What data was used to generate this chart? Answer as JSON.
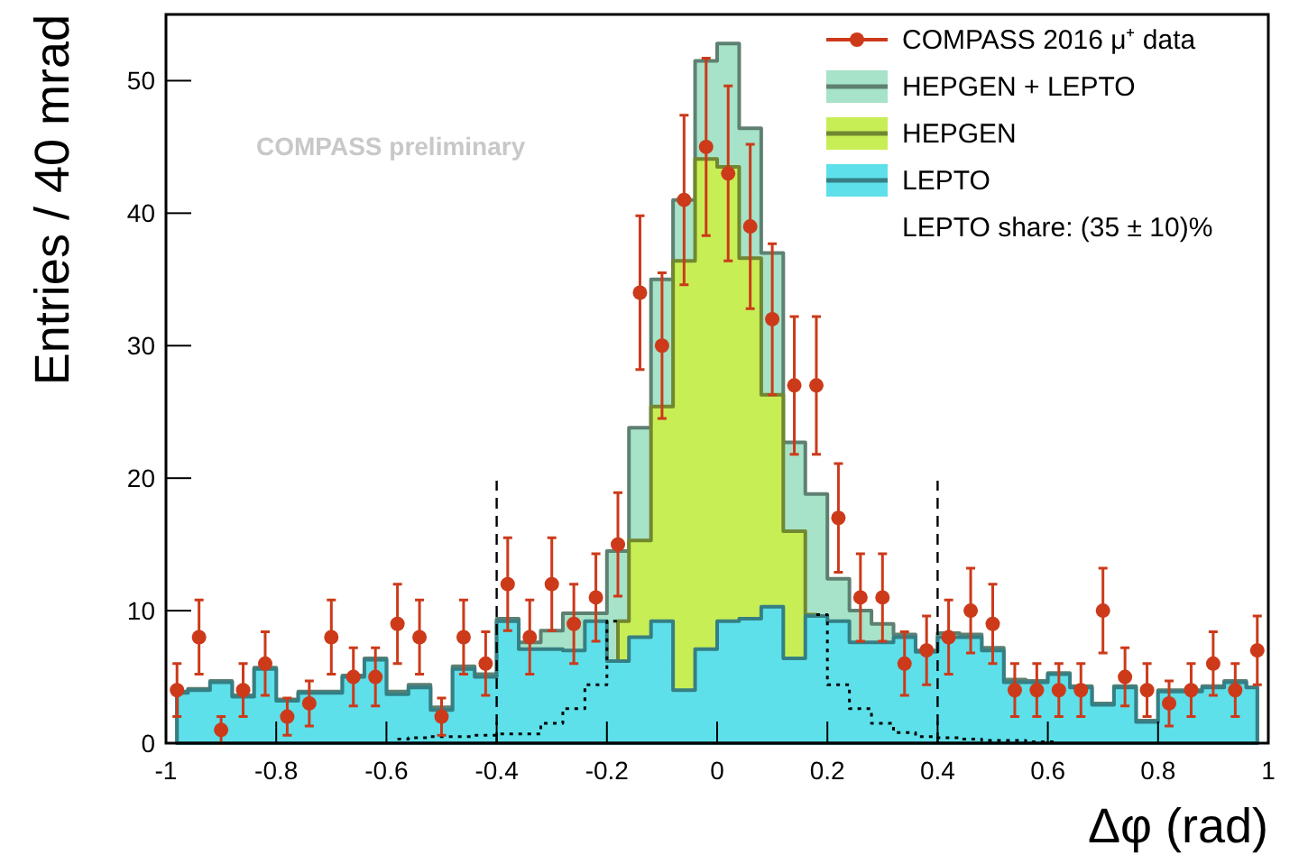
{
  "chart_data": {
    "type": "area",
    "xlabel": "Δφ (rad)",
    "ylabel": "Entries / 40 mrad",
    "legend": "top right",
    "grid": false,
    "xlim": [
      -1,
      1
    ],
    "xticks": [
      -1,
      -0.8,
      -0.6,
      -0.4,
      -0.2,
      0,
      0.2,
      0.4,
      0.6,
      0.8,
      1
    ],
    "ylim": [
      0,
      55
    ],
    "yticks": [
      0,
      10,
      20,
      30,
      40,
      50
    ],
    "x": [
      -0.98,
      -0.94,
      -0.9,
      -0.86,
      -0.82,
      -0.78,
      -0.74,
      -0.7,
      -0.66,
      -0.62,
      -0.58,
      -0.54,
      -0.5,
      -0.46,
      -0.42,
      -0.38,
      -0.34,
      -0.3,
      -0.26,
      -0.22,
      -0.18,
      -0.14,
      -0.1,
      -0.06,
      -0.02,
      0.02,
      0.06,
      0.1,
      0.14,
      0.18,
      0.22,
      0.26,
      0.3,
      0.34,
      0.38,
      0.42,
      0.46,
      0.5,
      0.54,
      0.58,
      0.62,
      0.66,
      0.7,
      0.74,
      0.78,
      0.82,
      0.86,
      0.9,
      0.94,
      0.98
    ],
    "series": [
      {
        "name": "COMPASS 2016 μ⁺ data",
        "type": "scatter",
        "marker": "circle",
        "color": "#cc3a1a",
        "values": [
          4,
          8,
          1,
          4,
          6,
          2,
          3,
          8,
          5,
          5,
          9,
          8,
          2,
          8,
          6,
          12,
          8,
          12,
          9,
          11,
          15,
          34,
          30,
          41,
          45,
          43,
          39,
          32,
          27,
          27,
          17,
          11,
          11,
          6,
          7,
          8,
          10,
          9,
          4,
          4,
          4,
          4,
          10,
          5,
          4,
          3,
          4,
          6,
          4,
          7
        ],
        "errors": [
          2,
          2.8,
          1,
          2,
          2.4,
          1.4,
          1.7,
          2.8,
          2.2,
          2.2,
          3,
          2.8,
          1.4,
          2.8,
          2.4,
          3.5,
          2.8,
          3.5,
          3,
          3.3,
          3.9,
          5.8,
          5.5,
          6.4,
          6.7,
          6.6,
          6.2,
          5.7,
          5.2,
          5.2,
          4.1,
          3.3,
          3.3,
          2.4,
          2.6,
          2.8,
          3.2,
          3,
          2,
          2,
          2,
          2,
          3.2,
          2.2,
          2,
          1.7,
          2,
          2.4,
          2,
          2.6
        ]
      },
      {
        "name": "HEPGEN + LEPTO",
        "color": "#a6e3c8",
        "values": [
          3.9,
          4.1,
          4.7,
          3.6,
          5.7,
          3.3,
          3.9,
          3.9,
          5.1,
          6.4,
          3.9,
          4.4,
          2.7,
          5.8,
          5.2,
          9.4,
          7.6,
          8.5,
          9.8,
          9.8,
          14.5,
          23.8,
          35,
          41,
          51.5,
          52.8,
          46.4,
          37,
          22.7,
          18.8,
          12.4,
          10,
          9,
          8.2,
          7,
          8.3,
          8.2,
          7.2,
          4.8,
          4.7,
          5.3,
          4.3,
          3,
          4.3,
          1.7,
          4,
          4,
          4.3,
          4.7,
          4.2
        ]
      },
      {
        "name": "HEPGEN",
        "color": "#c8ee55",
        "values": [
          null,
          null,
          null,
          null,
          null,
          null,
          null,
          null,
          null,
          null,
          null,
          null,
          null,
          null,
          null,
          null,
          null,
          null,
          null,
          null,
          9.2,
          15.3,
          25.4,
          36.4,
          44.1,
          43.5,
          36.6,
          26.3,
          16,
          9.7,
          null,
          null,
          null,
          null,
          null,
          null,
          null,
          null,
          null,
          null,
          null,
          null,
          null,
          null,
          null,
          null,
          null,
          null,
          null,
          null
        ]
      },
      {
        "name": "LEPTO",
        "color": "#5de0ea",
        "values": [
          3.8,
          4,
          4.6,
          3.5,
          5.6,
          3.2,
          3.8,
          3.8,
          5,
          6.3,
          3.7,
          4.2,
          2.5,
          5.6,
          5,
          9.2,
          7.1,
          7.1,
          7,
          9.2,
          6.2,
          8,
          9.2,
          4,
          7.1,
          9.2,
          9.4,
          10.3,
          6.4,
          9.6,
          9.2,
          7.6,
          7.6,
          8,
          6.9,
          8,
          8,
          7,
          4.6,
          4.6,
          5.2,
          4.2,
          2.9,
          4.2,
          1.6,
          3.9,
          3.9,
          4.2,
          4.6,
          4.2
        ]
      },
      {
        "type": "step",
        "line_style": "dotted",
        "color": "#000000",
        "values": [
          null,
          null,
          null,
          null,
          null,
          null,
          null,
          null,
          null,
          null,
          0.3,
          0.4,
          0.5,
          0.5,
          0.6,
          0.7,
          0.7,
          1.5,
          2.6,
          4.4,
          9.2,
          null,
          null,
          null,
          null,
          null,
          null,
          null,
          null,
          9.7,
          4.4,
          2.6,
          1.5,
          0.8,
          0.5,
          0.4,
          0.3,
          0.2,
          0.2,
          0.1,
          0.1,
          null,
          null,
          null,
          null,
          null,
          null,
          null,
          null,
          null
        ]
      }
    ],
    "ref_lines": [
      {
        "axis": "x",
        "value": -0.4,
        "line_style": "dashed",
        "color": "#000000"
      },
      {
        "axis": "x",
        "value": 0.4,
        "line_style": "dashed",
        "color": "#000000"
      }
    ],
    "annotations": [
      "COMPASS preliminary",
      "LEPTO share: (35 ± 10)%"
    ]
  }
}
